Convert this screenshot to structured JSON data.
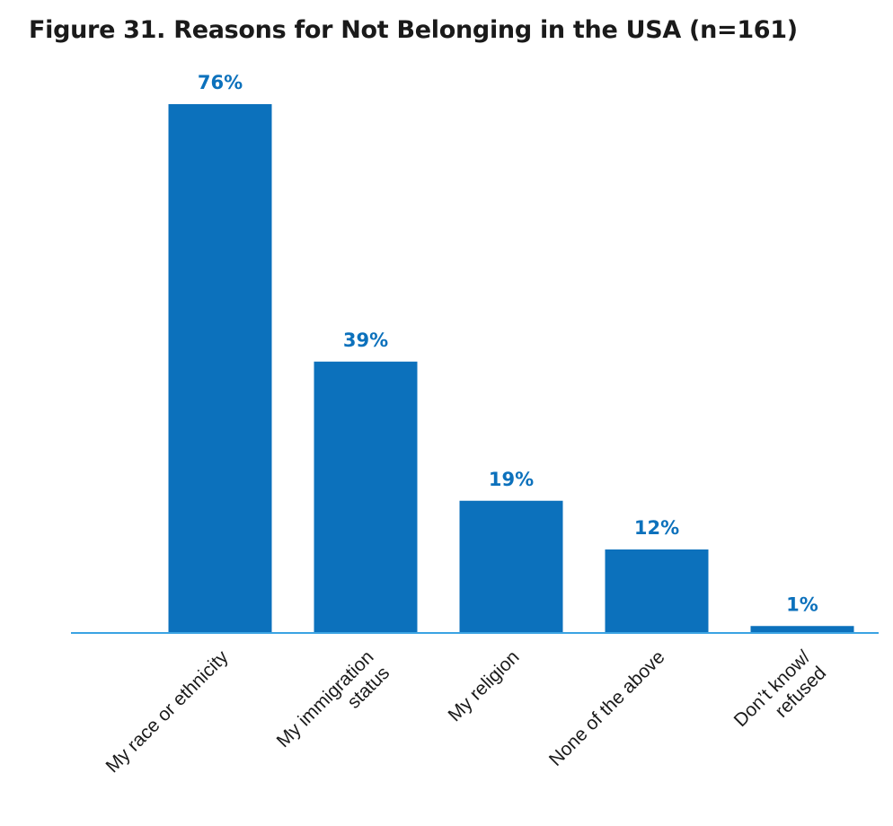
{
  "chart_data": {
    "type": "bar",
    "title": "Figure 31. Reasons for Not Belonging in the USA (n=161)",
    "categories": [
      [
        "My race or ethnicity"
      ],
      [
        "My immigration",
        "status"
      ],
      [
        "My religion"
      ],
      [
        "None of the above"
      ],
      [
        "Don’t know/",
        "refused"
      ]
    ],
    "values": [
      76,
      39,
      19,
      12,
      1
    ],
    "data_labels": [
      "76%",
      "39%",
      "19%",
      "12%",
      "1%"
    ],
    "xlabel": "",
    "ylabel": "",
    "ylim": [
      0,
      76
    ],
    "grid": false,
    "colors": {
      "bar": "#0c71bc",
      "axis": "#3aa3e3",
      "label": "#0c71bc"
    }
  }
}
